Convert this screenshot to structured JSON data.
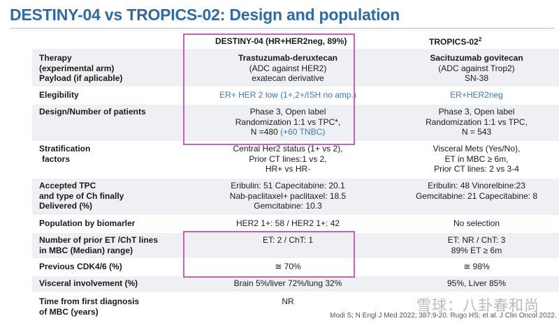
{
  "title": "DESTINY-04 vs TROPICS-02: Design and population",
  "headers": {
    "col2": "DESTINY-04 (HR+HER2neg, 89%)",
    "col3": "TROPICS-02",
    "col3_sup": "2"
  },
  "rows": [
    {
      "label": [
        "Therapy",
        "(experimental arm)",
        "Payload (if aplicable)"
      ],
      "col2": [
        "Trastuzumab-deruxtecan",
        "(ADC against HER2)",
        "exatecan derivative"
      ],
      "col3": [
        "Sacituzumab govitecan",
        "(ADC against Trop2)",
        "SN-38"
      ]
    },
    {
      "label": [
        "Elegibility"
      ],
      "col2": [
        "ER+ HER 2 low (1+,2+/ISH no amp.)"
      ],
      "col3": [
        "ER+HER2neg"
      ]
    },
    {
      "label": [
        "Design/Number of patients"
      ],
      "col2": [
        "Phase 3, Open label",
        "Randomization 1:1 vs TPC*,",
        "N =480"
      ],
      "col2_extra": "(+60 TNBC)",
      "col3": [
        "Phase 3, Open label",
        "Randomization 1:1 vs TPC,",
        "N = 543"
      ]
    },
    {
      "label": [
        "Stratification",
        "factors"
      ],
      "col2": [
        "Central Her2 status (1+ vs 2),",
        "Prior CT lines:1 vs 2,",
        "HR+ vs HR-"
      ],
      "col3": [
        "Visceral Mets (Yes/No),",
        "ET in MBC ≥ 6m,",
        "Prior CT lines: 2 vs 3-4"
      ]
    },
    {
      "label": [
        "Accepted TPC",
        "and type of Ch finally",
        "Delivered (%)"
      ],
      "col2": [
        "Eribulin: 51 Capecitabine: 20.1",
        "Nab-paclitaxel+ paclitaxel: 18.5",
        "Gemcitabine: 10.3"
      ],
      "col3": [
        "Eribulin: 48 Vinorelbine:23",
        "Gemcitabine: 21 Capecitabine: 8"
      ]
    },
    {
      "label": [
        "Population by biomarler"
      ],
      "col2": [
        "HER2 1+: 58 /  HER2 1+: 42"
      ],
      "col3": [
        "No selection"
      ]
    },
    {
      "label": [
        "Number of prior ET /ChT lines",
        "in MBC (Median) range)"
      ],
      "col2": [
        "ET: 2  /  ChT:  1"
      ],
      "col3": [
        "ET: NR / ChT: 3",
        "89% ET ≥ 6m"
      ]
    },
    {
      "label": [
        "Previous CDK4/6 (%)"
      ],
      "col2": [
        "≅ 70%"
      ],
      "col3": [
        "≅ 98%"
      ]
    },
    {
      "label": [
        "Visceral involvement (%)"
      ],
      "col2": [
        "Brain 5%/liver 72%/lung 32%"
      ],
      "col3": [
        "95%, Liver 85%"
      ]
    },
    {
      "label": [
        "Time from first diagnosis",
        "of MBC (years)"
      ],
      "col2": [
        "NR"
      ],
      "col3": [
        ""
      ]
    }
  ],
  "citation": "Modi S; N Engl J Med 2022; 387:9-20. Rugo HS; et al. J Clin Oncol 2022.",
  "watermark": "雪球：八卦春和尚"
}
